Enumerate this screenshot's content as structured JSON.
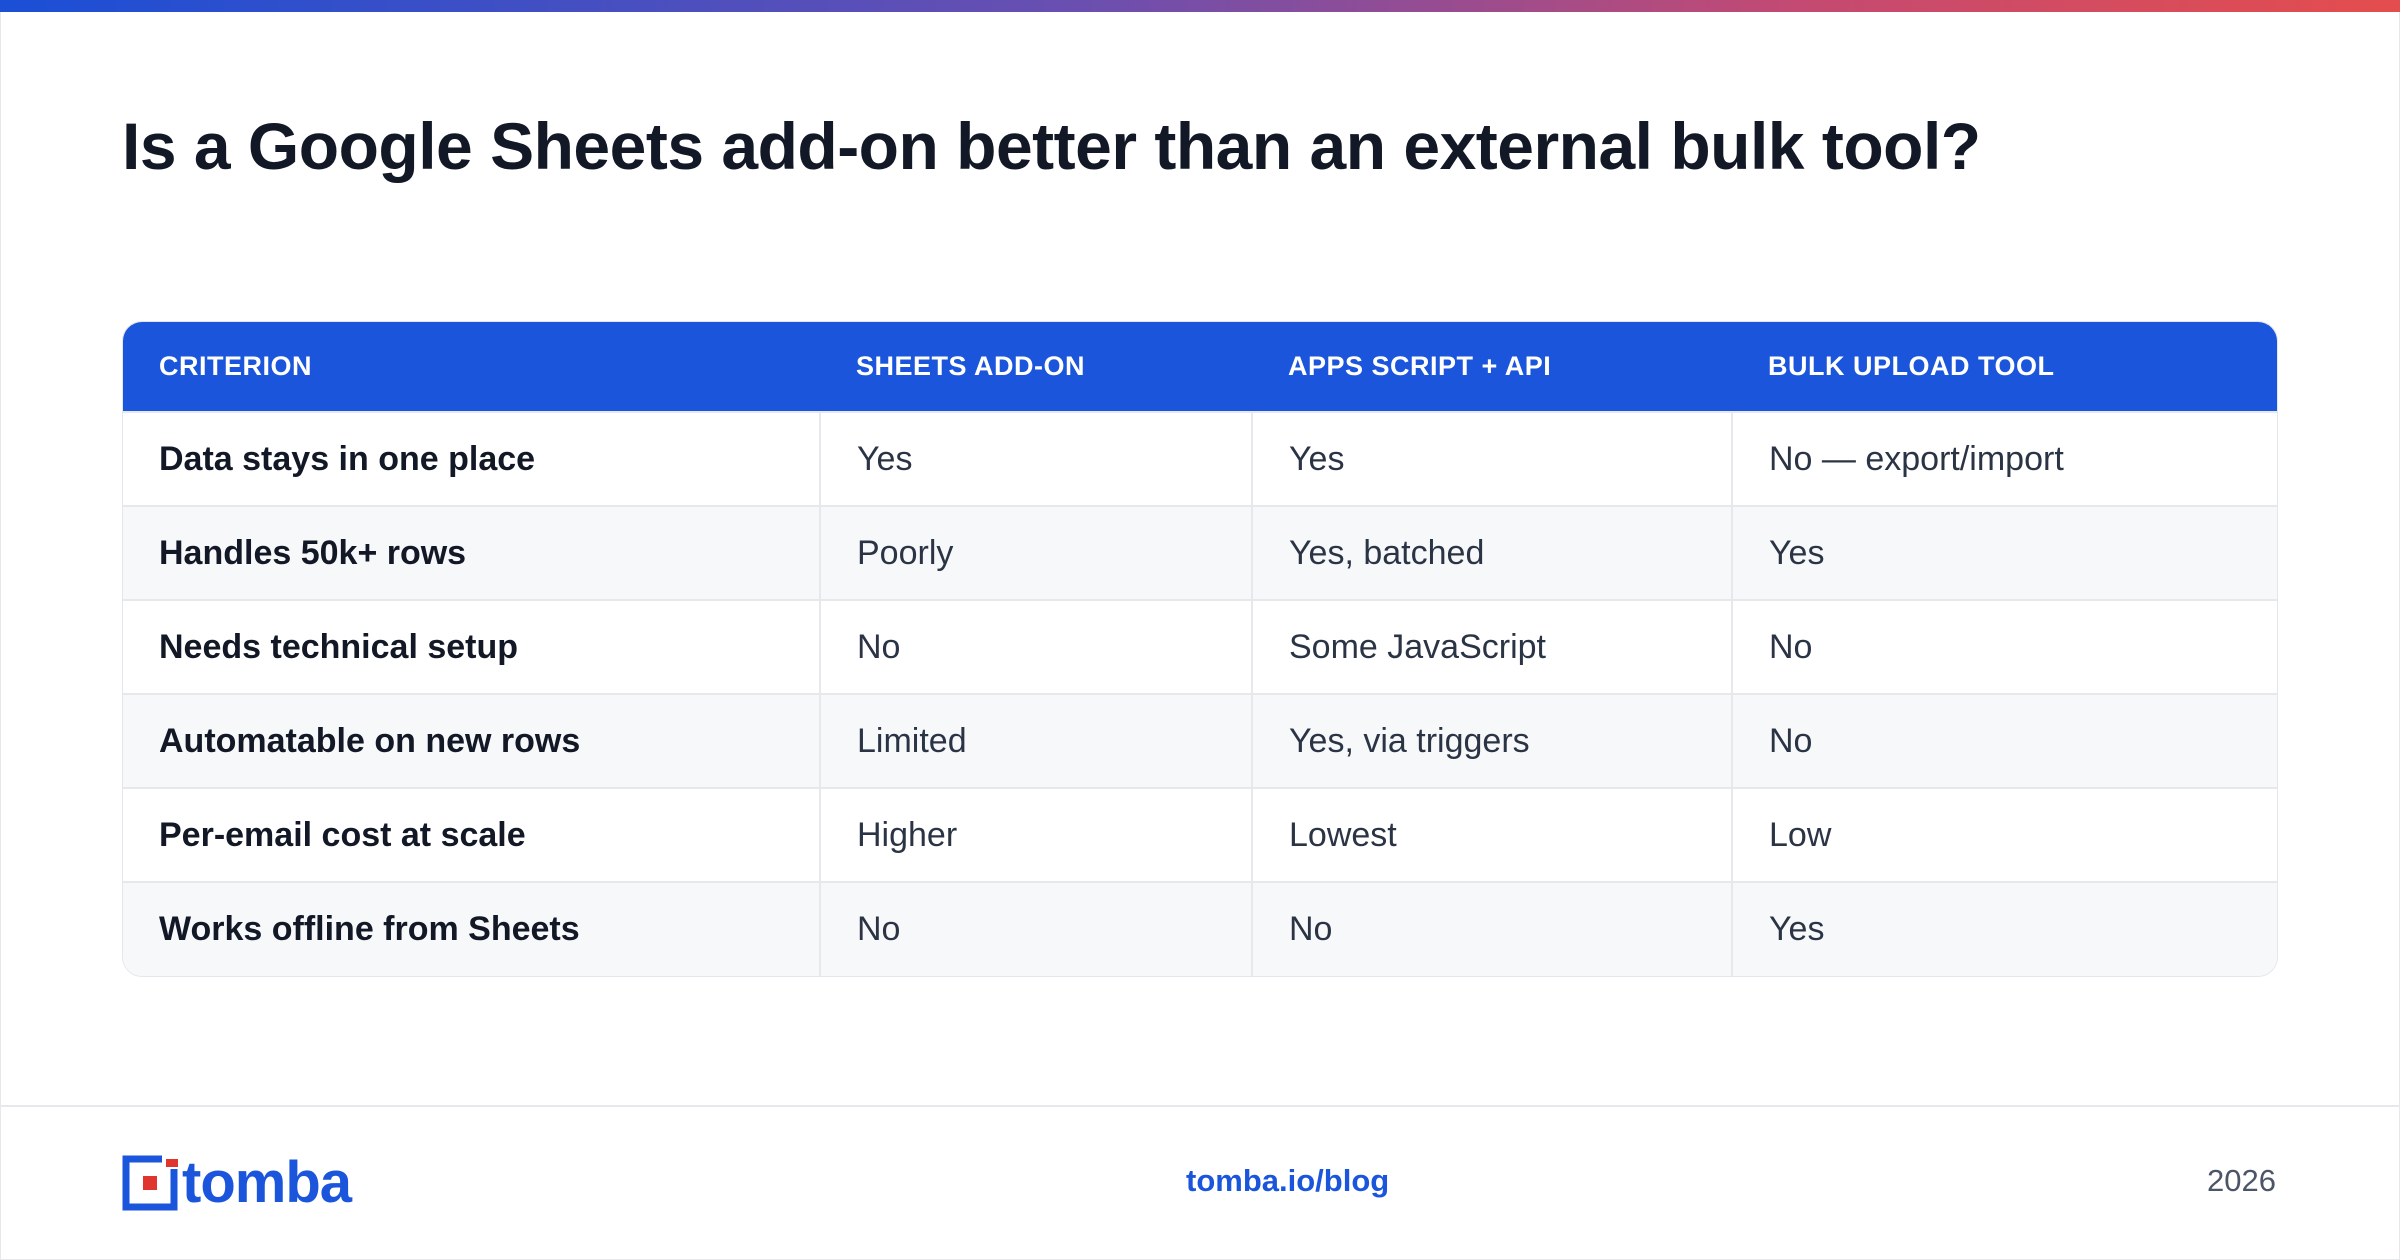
{
  "colors": {
    "accent": "#1a55db",
    "title": "#121826",
    "text": "#2b3445",
    "row_alt": "#f7f8fa"
  },
  "title": "Is a Google Sheets add-on better than an external bulk tool?",
  "table": {
    "headers": [
      "CRITERION",
      "SHEETS ADD-ON",
      "APPS SCRIPT + API",
      "BULK UPLOAD TOOL"
    ],
    "rows": [
      [
        "Data stays in one place",
        "Yes",
        "Yes",
        "No — export/import"
      ],
      [
        "Handles 50k+ rows",
        "Poorly",
        "Yes, batched",
        "Yes"
      ],
      [
        "Needs technical setup",
        "No",
        "Some JavaScript",
        "No"
      ],
      [
        "Automatable on new rows",
        "Limited",
        "Yes, via triggers",
        "No"
      ],
      [
        "Per-email cost at scale",
        "Higher",
        "Lowest",
        "Low"
      ],
      [
        "Works offline from Sheets",
        "No",
        "No",
        "Yes"
      ]
    ]
  },
  "footer": {
    "logo_text": "tomba",
    "logo_icon": "tomba-logo-icon",
    "link": "tomba.io/blog",
    "year": "2026"
  }
}
